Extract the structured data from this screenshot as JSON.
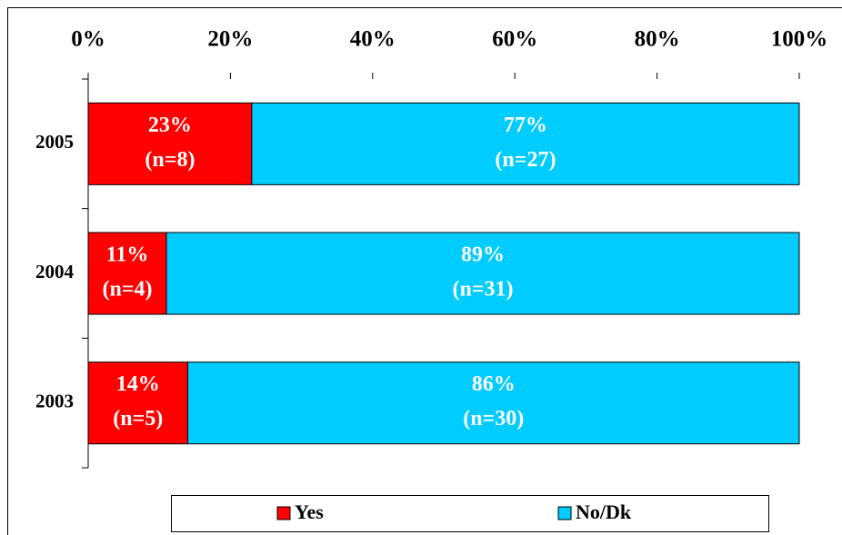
{
  "chart_data": {
    "type": "stacked-bar-horizontal",
    "categories": [
      "2005",
      "2004",
      "2003"
    ],
    "series": [
      {
        "name": "Yes",
        "color": "#ff0000",
        "values": [
          23,
          11,
          14
        ],
        "value_labels": [
          "23%",
          "11%",
          "14%"
        ],
        "n_labels": [
          "(n=8)",
          "(n=4)",
          "(n=5)"
        ]
      },
      {
        "name": "No/Dk",
        "color": "#00ccff",
        "values": [
          77,
          89,
          86
        ],
        "value_labels": [
          "77%",
          "89%",
          "86%"
        ],
        "n_labels": [
          "(n=27)",
          "(n=31)",
          "(n=30)"
        ]
      }
    ],
    "xlim": [
      0,
      100
    ],
    "xticks": [
      {
        "value": 0,
        "label": "0%"
      },
      {
        "value": 20,
        "label": "20%"
      },
      {
        "value": 40,
        "label": "40%"
      },
      {
        "value": 60,
        "label": "60%"
      },
      {
        "value": 80,
        "label": "80%"
      },
      {
        "value": 100,
        "label": "100%"
      }
    ],
    "legend": "bottom"
  }
}
